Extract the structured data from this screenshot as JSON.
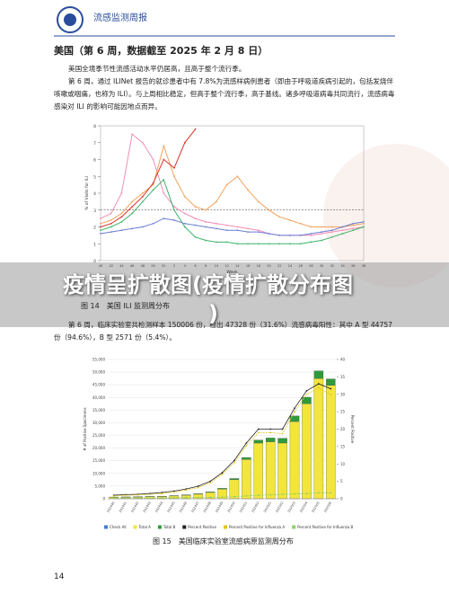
{
  "header": {
    "title": "流感监测周报"
  },
  "section_title": "美国（第 6 周，数据截至 2025 年 2 月 8 日）",
  "paragraphs": [
    "美国全境季节性流感活动水平仍居高，且高于整个流行季。",
    "第 6 周，通过 ILINet 报告的就诊患者中有 7.8%为流感样病例患者（即由于呼吸道疾病引起的，包括发烧伴咳嗽或咽痛，也称为 ILI）。与上周相比稳定，但高于整个流行季，高于基线。诸多呼吸道病毒共同流行，流感病毒感染对 ILI 的影响可能因地点而异。",
    "第 6 周，临床实验室共检测样本 150006 份，检出 47328 份（31.6%）流感病毒阳性：其中 A 型 44757 份（94.6%），B 型 2571 份（5.4%）。"
  ],
  "captions": [
    "图 14　美国 ILI 监测周分布",
    "图 15　美国临床实验室流感病原监测周分布"
  ],
  "overlay": [
    "疫情呈扩散图(疫情扩散分布图",
    ")"
  ],
  "page_number": "14",
  "chart_data": [
    {
      "type": "line",
      "x_label": "Week",
      "y_label": "% of Visits for ILI",
      "categories": [
        "40",
        "42",
        "44",
        "46",
        "48",
        "50",
        "52",
        "2",
        "4",
        "6",
        "8",
        "10",
        "12",
        "14",
        "16",
        "18",
        "20",
        "22",
        "24",
        "26",
        "28",
        "30",
        "32",
        "34",
        "36",
        "38"
      ],
      "ylim": [
        0,
        8
      ],
      "yticks": [
        0,
        1,
        2,
        3,
        4,
        5,
        6,
        7,
        8
      ],
      "baseline": 3,
      "series": [
        {
          "color": "#f08fb8",
          "values": [
            2.5,
            2.8,
            4,
            7.5,
            7,
            6,
            4,
            3.2,
            2.8,
            2.5,
            2.3,
            2.2,
            2.1,
            2,
            1.9,
            1.8,
            1.6,
            1.5,
            1.5,
            1.5,
            1.5,
            1.6,
            1.7,
            1.8,
            1.9,
            2
          ]
        },
        {
          "color": "#f2a25c",
          "values": [
            2.2,
            2.4,
            2.8,
            3.5,
            4,
            4.5,
            6.8,
            5,
            3.8,
            3.2,
            3,
            3.5,
            4.5,
            5,
            4.2,
            3.5,
            3,
            2.6,
            2.4,
            2.2,
            2,
            2,
            2,
            2,
            2.1,
            2.2
          ]
        },
        {
          "color": "#3fb36b",
          "values": [
            1.8,
            2,
            2.3,
            2.8,
            3.5,
            4.2,
            4.8,
            3,
            2,
            1.4,
            1.2,
            1.1,
            1.1,
            1,
            1,
            1,
            1,
            1,
            1,
            1,
            1.1,
            1.2,
            1.4,
            1.6,
            1.8,
            2
          ]
        },
        {
          "color": "#6b7fd1",
          "values": [
            1.6,
            1.7,
            1.8,
            1.9,
            2,
            2.2,
            2.5,
            2.4,
            2.2,
            2.1,
            2,
            1.9,
            1.8,
            1.8,
            1.7,
            1.7,
            1.6,
            1.5,
            1.5,
            1.5,
            1.6,
            1.7,
            1.8,
            2,
            2.2,
            2.3
          ]
        },
        {
          "color": "#d9342b",
          "values": [
            2,
            2.2,
            2.6,
            3.2,
            3.8,
            4.6,
            6,
            5.5,
            7,
            7.8,
            null,
            null,
            null,
            null,
            null,
            null,
            null,
            null,
            null,
            null,
            null,
            null,
            null,
            null,
            null,
            null
          ]
        }
      ]
    },
    {
      "type": "bar",
      "y_label": "# of Positive Specimens",
      "y2_label": "Percent Positive",
      "categories": [
        "202440",
        "202441",
        "202442",
        "202443",
        "202444",
        "202445",
        "202446",
        "202447",
        "202448",
        "202449",
        "202450",
        "202451",
        "202452",
        "202501",
        "202502",
        "202503",
        "202504",
        "202505",
        "202506"
      ],
      "ylim": [
        0,
        55000
      ],
      "yticks": [
        0,
        {
          "value": 5000,
          "label": "5,000"
        },
        {
          "value": 10000,
          "label": "10,000"
        },
        {
          "value": 15000,
          "label": "15,000"
        },
        {
          "value": 20000,
          "label": "20,000"
        },
        {
          "value": 25000,
          "label": "25,000"
        },
        {
          "value": 30000,
          "label": "30,000"
        },
        {
          "value": 35000,
          "label": "35,000"
        },
        {
          "value": 40000,
          "label": "40,000"
        },
        {
          "value": 45000,
          "label": "45,000"
        },
        {
          "value": 50000,
          "label": "50,000"
        },
        {
          "value": 55000,
          "label": "55,000"
        }
      ],
      "y2lim": [
        0,
        40
      ],
      "y2ticks": [
        0,
        5,
        10,
        15,
        20,
        25,
        30,
        35,
        40
      ],
      "legend": [
        "Check All"
      ],
      "series": [
        {
          "name": "Total A",
          "color": "#f3e53a",
          "values": [
            600,
            650,
            700,
            800,
            900,
            1100,
            1400,
            1800,
            2500,
            3800,
            7500,
            15500,
            22000,
            22500,
            22000,
            30500,
            37500,
            47500,
            44757
          ]
        },
        {
          "name": "Total B",
          "color": "#2e9a3c",
          "values": [
            100,
            100,
            100,
            120,
            130,
            150,
            170,
            200,
            250,
            350,
            500,
            800,
            1200,
            1500,
            1900,
            2200,
            2600,
            3000,
            2571
          ]
        },
        {
          "name": "Percent Positive",
          "axis": "y2",
          "color": "#222222",
          "values": [
            1,
            1.2,
            1.3,
            1.5,
            1.8,
            2.2,
            2.8,
            3.6,
            5,
            7.5,
            11,
            16,
            20,
            20,
            20,
            26,
            31,
            33,
            31.6
          ]
        },
        {
          "name": "Percent Positive for Influenza A",
          "axis": "y2",
          "color": "#e0c81c",
          "values": [
            0.8,
            1,
            1.1,
            1.3,
            1.5,
            1.9,
            2.5,
            3.2,
            4.6,
            7,
            10.4,
            15.2,
            19,
            19,
            18.7,
            25,
            30,
            31.8,
            29.9
          ]
        },
        {
          "name": "Percent Positive for Influenza B",
          "axis": "y2",
          "color": "#8fd16a",
          "values": [
            0.2,
            0.2,
            0.2,
            0.2,
            0.3,
            0.3,
            0.3,
            0.4,
            0.4,
            0.5,
            0.6,
            0.8,
            1,
            1.1,
            1.3,
            1.4,
            1.5,
            1.7,
            1.7
          ]
        }
      ]
    }
  ]
}
